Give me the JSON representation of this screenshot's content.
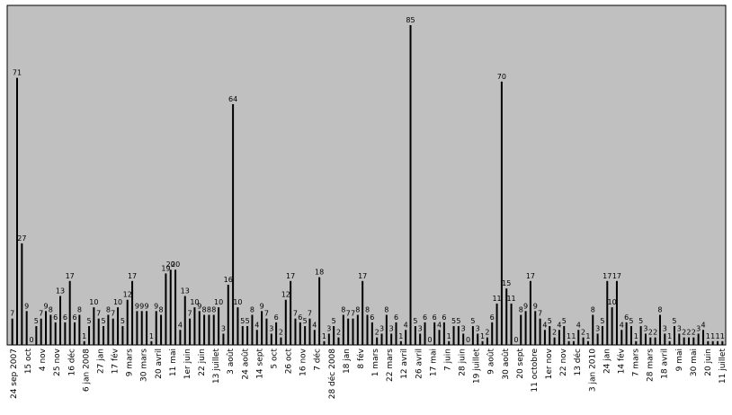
{
  "chart_data": {
    "type": "bar",
    "title": "",
    "xlabel": "",
    "ylabel": "",
    "ylim": [
      0,
      85
    ],
    "grid": false,
    "legend": "none",
    "colors": {
      "plot_background": "#c0c0c0",
      "bar": "#000000",
      "border": "#000000",
      "page": "#ffffff"
    },
    "values": [
      7,
      71,
      27,
      9,
      0,
      5,
      7,
      9,
      8,
      6,
      13,
      6,
      17,
      6,
      8,
      1,
      5,
      10,
      7,
      5,
      8,
      7,
      10,
      5,
      12,
      17,
      9,
      9,
      9,
      1,
      9,
      8,
      19,
      20,
      20,
      4,
      13,
      7,
      10,
      9,
      8,
      8,
      8,
      10,
      3,
      16,
      64,
      10,
      5,
      5,
      8,
      4,
      9,
      7,
      3,
      6,
      2,
      12,
      17,
      7,
      6,
      5,
      7,
      4,
      18,
      1,
      3,
      5,
      2,
      8,
      7,
      7,
      8,
      17,
      8,
      6,
      2,
      3,
      8,
      3,
      6,
      1,
      4,
      85,
      5,
      3,
      6,
      0,
      6,
      4,
      6,
      1,
      5,
      5,
      3,
      0,
      5,
      3,
      1,
      2,
      6,
      11,
      70,
      15,
      11,
      0,
      8,
      9,
      17,
      9,
      7,
      4,
      5,
      2,
      4,
      5,
      1,
      1,
      4,
      2,
      1,
      8,
      3,
      5,
      17,
      10,
      17,
      4,
      6,
      5,
      1,
      5,
      3,
      2,
      2,
      8,
      3,
      1,
      5,
      3,
      2,
      2,
      2,
      3,
      4,
      1,
      1,
      1,
      1
    ],
    "data_labels": [
      "7",
      "71",
      "27",
      "9",
      "0",
      "5",
      "7",
      "9",
      "8",
      "6",
      "13",
      "6",
      "17",
      "6",
      "8",
      "1",
      "5",
      "10",
      "7",
      "5",
      "8",
      "7",
      "10",
      "5",
      "12",
      "17",
      "9",
      "9",
      "9",
      "1",
      "9",
      "8",
      "19",
      "20",
      "20",
      "4",
      "13",
      "7",
      "10",
      "9",
      "8",
      "8",
      "8",
      "10",
      "3",
      "16",
      "64",
      "10",
      "5",
      "5",
      "8",
      "4",
      "9",
      "7",
      "3",
      "6",
      "2",
      "12",
      "17",
      "7",
      "6",
      "5",
      "7",
      "4",
      "18",
      "1",
      "3",
      "5",
      "2",
      "8",
      "7",
      "7",
      "8",
      "17",
      "8",
      "6",
      "2",
      "3",
      "8",
      "3",
      "6",
      "1",
      "4",
      "85",
      "5",
      "3",
      "6",
      "0",
      "6",
      "4",
      "6",
      "1",
      "5",
      "5",
      "3",
      "0",
      "5",
      "3",
      "1",
      "2",
      "6",
      "11",
      "70",
      "15",
      "11",
      "0",
      "8",
      "9",
      "17",
      "9",
      "7",
      "4",
      "5",
      "2",
      "4",
      "5",
      "1",
      "1",
      "4",
      "2",
      "1",
      "8",
      "3",
      "5",
      "17",
      "10",
      "17",
      "4",
      "6",
      "5",
      "1",
      "5",
      "3",
      "2",
      "2",
      "8",
      "3",
      "1",
      "5",
      "3",
      "2",
      "2",
      "2",
      "3",
      "4",
      "1",
      "1",
      "1",
      "1"
    ],
    "tick_labels": [
      "24 sep 2007",
      "15 oct",
      "4 nov",
      "25 nov",
      "16 déc",
      "6 jan 2008",
      "27 jan",
      "17 fév",
      "9 mars",
      "30 mars",
      "20 avril",
      "11 mai",
      "1er juin",
      "22 juin",
      "13 juillet",
      "3 août",
      "24 août",
      "14 sept",
      "5 oct",
      "26 oct",
      "16 nov",
      "7 déc",
      "28 déc 2008",
      "18 jan",
      "8 fév",
      "1 mars",
      "22 mars",
      "12 avril",
      "26 avril",
      "17 mai",
      "7 juin",
      "28 juin",
      "19 juillet",
      "9 août",
      "30 août",
      "20 sept",
      "11 octobre",
      "1er nov",
      "22 nov",
      "13 déc",
      "3 jan 2010",
      "24 jan",
      "14 fév",
      "7 mars",
      "28 mars",
      "18 avril",
      "9 mai",
      "30 mai",
      "20 juin",
      "11 juillet"
    ]
  }
}
